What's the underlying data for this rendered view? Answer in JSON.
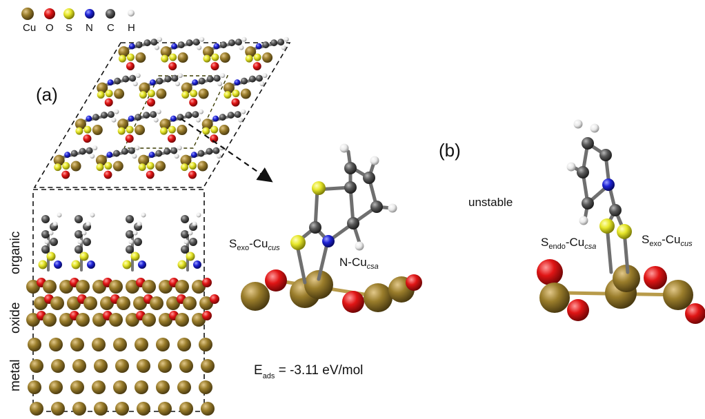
{
  "legend": [
    {
      "element": "Cu",
      "color": "#9a7d2b"
    },
    {
      "element": "O",
      "color": "#e01515"
    },
    {
      "element": "S",
      "color": "#e6e62a"
    },
    {
      "element": "N",
      "color": "#1f24d6"
    },
    {
      "element": "C",
      "color": "#595959"
    },
    {
      "element": "H",
      "color": "#e8e8e8"
    }
  ],
  "panels": {
    "a": "(a)",
    "b": "(b)"
  },
  "regions": {
    "organic": "organic",
    "oxide": "oxide",
    "metal": "metal"
  },
  "bond_labels": {
    "s_exo_cus_a": {
      "main": "S",
      "sub1": "exo",
      "mid": "-Cu",
      "sub2": "cus"
    },
    "n_cu_csa": {
      "main": "N-Cu",
      "sub1": "csa"
    },
    "s_endo_csa": {
      "main": "S",
      "sub1": "endo",
      "mid": "-Cu",
      "sub2": "csa"
    },
    "s_exo_cus_b": {
      "main": "S",
      "sub1": "exo",
      "mid": "-Cu",
      "sub2": "cus"
    }
  },
  "energy": {
    "symbol": "E",
    "sub": "ads",
    "value": "= -3.11 eV/mol"
  },
  "unstable": "unstable"
}
